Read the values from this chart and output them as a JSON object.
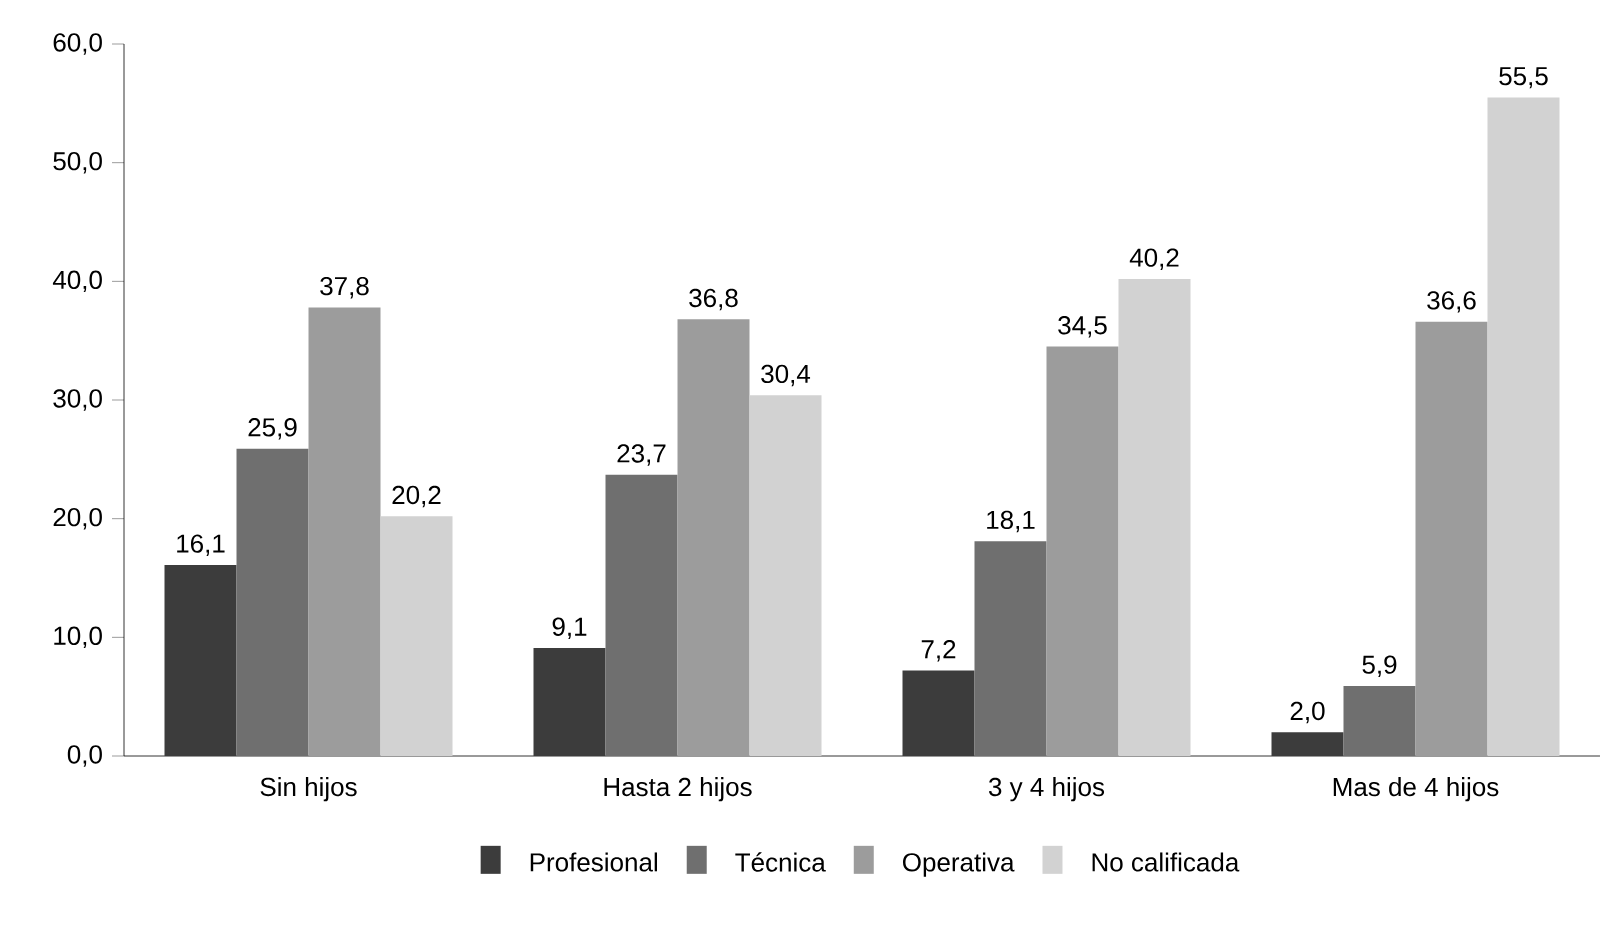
{
  "chart_data": {
    "type": "bar",
    "categories": [
      "Sin hijos",
      "Hasta 2 hijos",
      "3 y 4 hijos",
      "Mas de 4 hijos"
    ],
    "series": [
      {
        "name": "Profesional",
        "color": "#3c3c3c",
        "values": [
          16.1,
          9.1,
          7.2,
          2.0
        ],
        "value_labels": [
          "16,1",
          "9,1",
          "7,2",
          "2,0"
        ]
      },
      {
        "name": "Técnica",
        "color": "#6f6f6f",
        "values": [
          25.9,
          23.7,
          18.1,
          5.9
        ],
        "value_labels": [
          "25,9",
          "23,7",
          "18,1",
          "5,9"
        ]
      },
      {
        "name": "Operativa",
        "color": "#9c9c9c",
        "values": [
          37.8,
          36.8,
          34.5,
          36.6
        ],
        "value_labels": [
          "37,8",
          "36,8",
          "34,5",
          "36,6"
        ]
      },
      {
        "name": "No calificada",
        "color": "#d2d2d2",
        "values": [
          20.2,
          30.4,
          40.2,
          55.5
        ],
        "value_labels": [
          "20,2",
          "30,4",
          "40,2",
          "55,5"
        ]
      }
    ],
    "ylim": [
      0,
      60
    ],
    "yticks": [
      {
        "value": 0,
        "label": "0,0"
      },
      {
        "value": 10,
        "label": "10,0"
      },
      {
        "value": 20,
        "label": "20,0"
      },
      {
        "value": 30,
        "label": "30,0"
      },
      {
        "value": 40,
        "label": "40,0"
      },
      {
        "value": 50,
        "label": "50,0"
      },
      {
        "value": 60,
        "label": "60,0"
      }
    ],
    "grid": false,
    "legend": "bottom"
  }
}
